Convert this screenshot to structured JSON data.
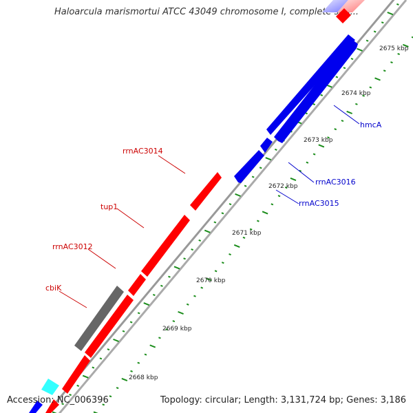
{
  "title": "Haloarcula marismortui ATCC 43049 chromosome I, complete seq...",
  "footer": {
    "accession": "Accession: NC_006396",
    "summary": "Topology: circular; Length: 3,131,724 bp; Genes: 3,186"
  },
  "ticks": [
    "2668 kbp",
    "2669 kbp",
    "2670 kbp",
    "2671 kbp",
    "2672 kbp",
    "2673 kbp",
    "2674 kbp",
    "2675 kbp"
  ],
  "genes": [
    {
      "name": "cbiK",
      "color": "#cc0000"
    },
    {
      "name": "rrnAC3012",
      "color": "#cc0000"
    },
    {
      "name": "tup1",
      "color": "#cc0000"
    },
    {
      "name": "rrnAC3014",
      "color": "#cc0000"
    },
    {
      "name": "rrnAC3015",
      "color": "#0000cc"
    },
    {
      "name": "rrnAC3016",
      "color": "#0000cc"
    },
    {
      "name": "hmcA",
      "color": "#0000cc"
    }
  ],
  "colors": {
    "forward": "#ff0000",
    "reverse": "#0000ff",
    "unlabeled": "#666666",
    "highlight": "#33ffff",
    "backbone": "#999999",
    "tick": "#1a8c1a"
  }
}
